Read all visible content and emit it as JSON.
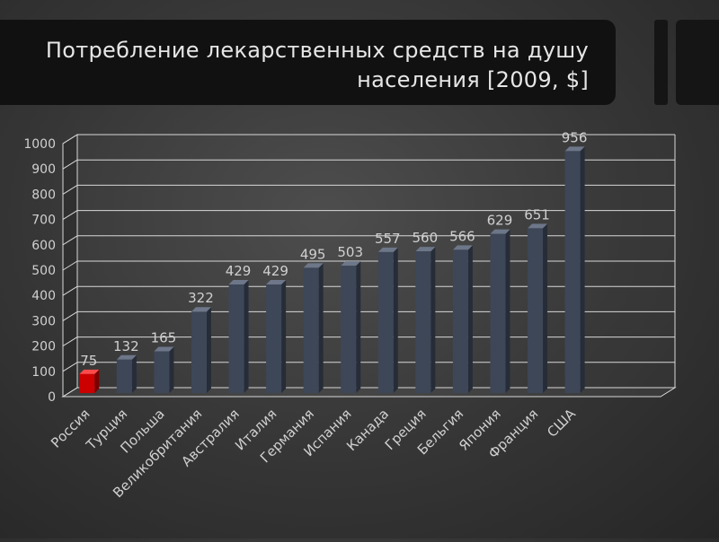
{
  "slide": {
    "title": "Потребление лекарственных средств на душу населения [2009, $]"
  },
  "chart_data": {
    "type": "bar",
    "title": "Потребление лекарственных средств на душу населения [2009, $]",
    "categories": [
      "Россия",
      "Турция",
      "Польша",
      "Великобритания",
      "Австралия",
      "Италия",
      "Германия",
      "Испания",
      "Канада",
      "Греция",
      "Бельгия",
      "Япония",
      "Франция",
      "США"
    ],
    "values": [
      75,
      132,
      165,
      322,
      429,
      429,
      495,
      503,
      557,
      560,
      566,
      629,
      651,
      956
    ],
    "highlight_index": 0,
    "colors": {
      "bar": "#3d4757",
      "highlight": "#cc0000",
      "grid": "#d8d8d8",
      "text": "#d0d0d0"
    },
    "ylim": [
      0,
      1000
    ],
    "yticks": [
      0,
      100,
      200,
      300,
      400,
      500,
      600,
      700,
      800,
      900,
      1000
    ],
    "grid": true,
    "xlabel": "",
    "ylabel": ""
  }
}
